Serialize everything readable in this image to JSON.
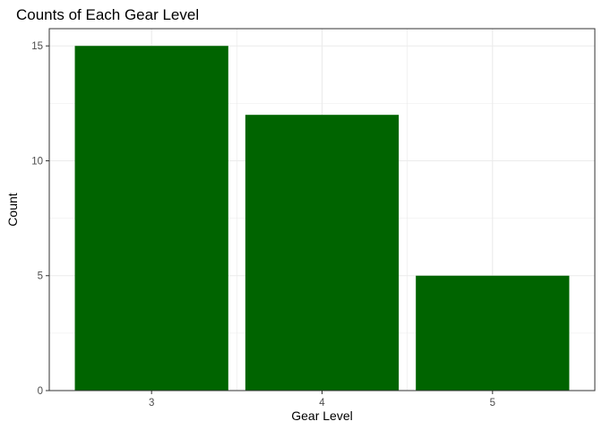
{
  "chart_data": {
    "type": "bar",
    "title": "Counts of Each Gear Level",
    "xlabel": "Gear Level",
    "ylabel": "Count",
    "categories": [
      "3",
      "4",
      "5"
    ],
    "values": [
      15,
      12,
      5
    ],
    "yticks": [
      0,
      5,
      10,
      15
    ],
    "ylim": [
      0,
      15.75
    ],
    "grid": true,
    "legend": "none",
    "bar_color": "#006400",
    "grid_color": "#ebebeb",
    "panel_border_color": "#333333",
    "tick_color": "#333333"
  }
}
